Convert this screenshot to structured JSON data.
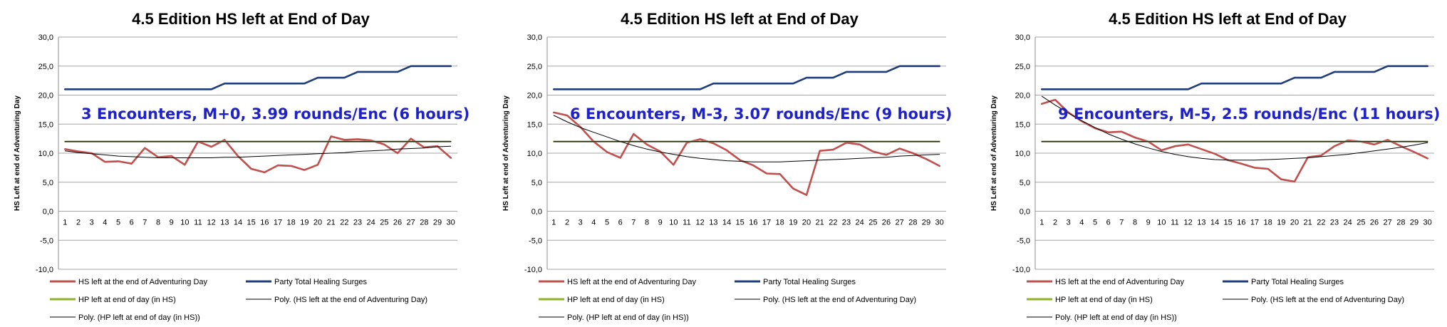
{
  "chart_data": [
    {
      "type": "line",
      "title": "4.5 Edition HS left at End of Day",
      "annotation": "3 Encounters, M+0, 3.99 rounds/Enc (6 hours)",
      "xlabel": "",
      "ylabel": "HS Left at end of Adventuring Day",
      "ylim": [
        -10,
        30
      ],
      "y_ticks": [
        "-10,0",
        "-5,0",
        "0,0",
        "5,0",
        "10,0",
        "15,0",
        "20,0",
        "25,0",
        "30,0"
      ],
      "grid": true,
      "legend_position": "bottom",
      "categories": [
        1,
        2,
        3,
        4,
        5,
        6,
        7,
        8,
        9,
        10,
        11,
        12,
        13,
        14,
        15,
        16,
        17,
        18,
        19,
        20,
        21,
        22,
        23,
        24,
        25,
        26,
        27,
        28,
        29,
        30
      ],
      "series": [
        {
          "name": "HS left at the end of Adventuring Day",
          "color": "#c0504d",
          "style": "data",
          "values": [
            10.7,
            10.3,
            10.0,
            8.5,
            8.6,
            8.2,
            10.9,
            9.3,
            9.5,
            8.0,
            12.0,
            11.1,
            12.3,
            9.5,
            7.3,
            6.7,
            7.9,
            7.8,
            7.1,
            8.0,
            12.9,
            12.3,
            12.4,
            12.2,
            11.5,
            10.0,
            12.5,
            11.0,
            11.2,
            9.2
          ]
        },
        {
          "name": "Party Total  Healing Surges",
          "color": "#1f3d7a",
          "style": "data",
          "values": [
            21,
            21,
            21,
            21,
            21,
            21,
            21,
            21,
            21,
            21,
            21,
            21,
            22,
            22,
            22,
            22,
            22,
            22,
            22,
            23,
            23,
            23,
            24,
            24,
            24,
            24,
            25,
            25,
            25,
            25
          ]
        },
        {
          "name": "HP left at end of day (in HS)",
          "color": "#8db32c",
          "style": "data",
          "values": [
            12,
            12,
            12,
            12,
            12,
            12,
            12,
            12,
            12,
            12,
            12,
            12,
            12,
            12,
            12,
            12,
            12,
            12,
            12,
            12,
            12,
            12,
            12,
            12,
            12,
            12,
            12,
            12,
            12,
            12
          ]
        },
        {
          "name": "Poly. (HS left at the end of Adventuring Day)",
          "color": "#000000",
          "style": "trend",
          "values": [
            10.4,
            10.1,
            9.9,
            9.7,
            9.5,
            9.4,
            9.3,
            9.2,
            9.2,
            9.2,
            9.2,
            9.2,
            9.3,
            9.3,
            9.4,
            9.5,
            9.6,
            9.7,
            9.8,
            9.9,
            10.0,
            10.1,
            10.3,
            10.4,
            10.5,
            10.7,
            10.8,
            10.9,
            11.1,
            11.2
          ]
        },
        {
          "name": "Poly. (HP left at end of day (in HS))",
          "color": "#000000",
          "style": "trend",
          "values": [
            12,
            12,
            12,
            12,
            12,
            12,
            12,
            12,
            12,
            12,
            12,
            12,
            12,
            12,
            12,
            12,
            12,
            12,
            12,
            12,
            12,
            12,
            12,
            12,
            12,
            12,
            12,
            12,
            12,
            12
          ]
        }
      ]
    },
    {
      "type": "line",
      "title": "4.5 Edition HS left at End of Day",
      "annotation": "6 Encounters, M-3, 3.07 rounds/Enc (9 hours)",
      "xlabel": "",
      "ylabel": "HS Left at end of Adventuring Day",
      "ylim": [
        -10,
        30
      ],
      "y_ticks": [
        "-10,0",
        "-5,0",
        "0,0",
        "5,0",
        "10,0",
        "15,0",
        "20,0",
        "25,0",
        "30,0"
      ],
      "grid": true,
      "legend_position": "bottom",
      "categories": [
        1,
        2,
        3,
        4,
        5,
        6,
        7,
        8,
        9,
        10,
        11,
        12,
        13,
        14,
        15,
        16,
        17,
        18,
        19,
        20,
        21,
        22,
        23,
        24,
        25,
        26,
        27,
        28,
        29,
        30
      ],
      "series": [
        {
          "name": "HS left at the end of Adventuring Day",
          "color": "#c0504d",
          "style": "data",
          "values": [
            17.0,
            16.5,
            14.5,
            12.0,
            10.2,
            9.2,
            13.3,
            11.5,
            10.3,
            8.0,
            11.8,
            12.4,
            11.7,
            10.5,
            8.8,
            7.9,
            6.5,
            6.4,
            3.9,
            2.8,
            10.4,
            10.6,
            11.8,
            11.5,
            10.3,
            9.7,
            10.8,
            10.0,
            9.0,
            7.8
          ]
        },
        {
          "name": "Party Total  Healing Surges",
          "color": "#1f3d7a",
          "style": "data",
          "values": [
            21,
            21,
            21,
            21,
            21,
            21,
            21,
            21,
            21,
            21,
            21,
            21,
            22,
            22,
            22,
            22,
            22,
            22,
            22,
            23,
            23,
            23,
            24,
            24,
            24,
            24,
            25,
            25,
            25,
            25
          ]
        },
        {
          "name": "HP left at end of day (in HS)",
          "color": "#8db32c",
          "style": "data",
          "values": [
            12,
            12,
            12,
            12,
            12,
            12,
            12,
            12,
            12,
            12,
            12,
            12,
            12,
            12,
            12,
            12,
            12,
            12,
            12,
            12,
            12,
            12,
            12,
            12,
            12,
            12,
            12,
            12,
            12,
            12
          ]
        },
        {
          "name": "Poly. (HS left at the end of Adventuring Day)",
          "color": "#000000",
          "style": "trend",
          "values": [
            16.5,
            15.4,
            14.4,
            13.6,
            12.8,
            12.0,
            11.3,
            10.7,
            10.2,
            9.8,
            9.4,
            9.1,
            8.9,
            8.7,
            8.6,
            8.5,
            8.5,
            8.5,
            8.6,
            8.7,
            8.8,
            8.9,
            9.0,
            9.1,
            9.2,
            9.3,
            9.5,
            9.6,
            9.7,
            9.8
          ]
        },
        {
          "name": "Poly. (HP left at end of day (in HS))",
          "color": "#000000",
          "style": "trend",
          "values": [
            12,
            12,
            12,
            12,
            12,
            12,
            12,
            12,
            12,
            12,
            12,
            12,
            12,
            12,
            12,
            12,
            12,
            12,
            12,
            12,
            12,
            12,
            12,
            12,
            12,
            12,
            12,
            12,
            12,
            12
          ]
        }
      ]
    },
    {
      "type": "line",
      "title": "4.5 Edition HS left at End of Day",
      "annotation": "9 Encounters, M-5, 2.5 rounds/Enc (11 hours)",
      "xlabel": "",
      "ylabel": "HS Left at end of Adventuring Day",
      "ylim": [
        -10,
        30
      ],
      "y_ticks": [
        "-10,0",
        "-5,0",
        "0,0",
        "5,0",
        "10,0",
        "15,0",
        "20,0",
        "25,0",
        "30,0"
      ],
      "grid": true,
      "legend_position": "bottom",
      "categories": [
        1,
        2,
        3,
        4,
        5,
        6,
        7,
        8,
        9,
        10,
        11,
        12,
        13,
        14,
        15,
        16,
        17,
        18,
        19,
        20,
        21,
        22,
        23,
        24,
        25,
        26,
        27,
        28,
        29,
        30
      ],
      "series": [
        {
          "name": "HS left at the end of Adventuring Day",
          "color": "#c0504d",
          "style": "data",
          "values": [
            18.5,
            19.2,
            17.0,
            15.5,
            14.3,
            13.6,
            13.7,
            12.7,
            12.0,
            10.5,
            11.2,
            11.5,
            10.7,
            9.9,
            8.8,
            8.2,
            7.5,
            7.3,
            5.5,
            5.1,
            9.3,
            9.6,
            11.2,
            12.2,
            12.0,
            11.5,
            12.3,
            11.2,
            10.2,
            9.1
          ]
        },
        {
          "name": "Party Total  Healing Surges",
          "color": "#1f3d7a",
          "style": "data",
          "values": [
            21,
            21,
            21,
            21,
            21,
            21,
            21,
            21,
            21,
            21,
            21,
            21,
            22,
            22,
            22,
            22,
            22,
            22,
            22,
            23,
            23,
            23,
            24,
            24,
            24,
            24,
            25,
            25,
            25,
            25
          ]
        },
        {
          "name": "HP left at end of day (in HS)",
          "color": "#8db32c",
          "style": "data",
          "values": [
            12,
            12,
            12,
            12,
            12,
            12,
            12,
            12,
            12,
            12,
            12,
            12,
            12,
            12,
            12,
            12,
            12,
            12,
            12,
            12,
            12,
            12,
            12,
            12,
            12,
            12,
            12,
            12,
            12,
            12
          ]
        },
        {
          "name": "Poly. (HS left at the end of Adventuring Day)",
          "color": "#000000",
          "style": "trend",
          "values": [
            19.8,
            18.3,
            16.9,
            15.6,
            14.4,
            13.3,
            12.4,
            11.6,
            10.9,
            10.3,
            9.8,
            9.4,
            9.1,
            8.9,
            8.8,
            8.8,
            8.8,
            8.9,
            9.0,
            9.1,
            9.2,
            9.4,
            9.6,
            9.8,
            10.1,
            10.4,
            10.7,
            11.0,
            11.4,
            11.8
          ]
        },
        {
          "name": "Poly. (HP left at end of day (in HS))",
          "color": "#000000",
          "style": "trend",
          "values": [
            12,
            12,
            12,
            12,
            12,
            12,
            12,
            12,
            12,
            12,
            12,
            12,
            12,
            12,
            12,
            12,
            12,
            12,
            12,
            12,
            12,
            12,
            12,
            12,
            12,
            12,
            12,
            12,
            12,
            12
          ]
        }
      ]
    }
  ]
}
